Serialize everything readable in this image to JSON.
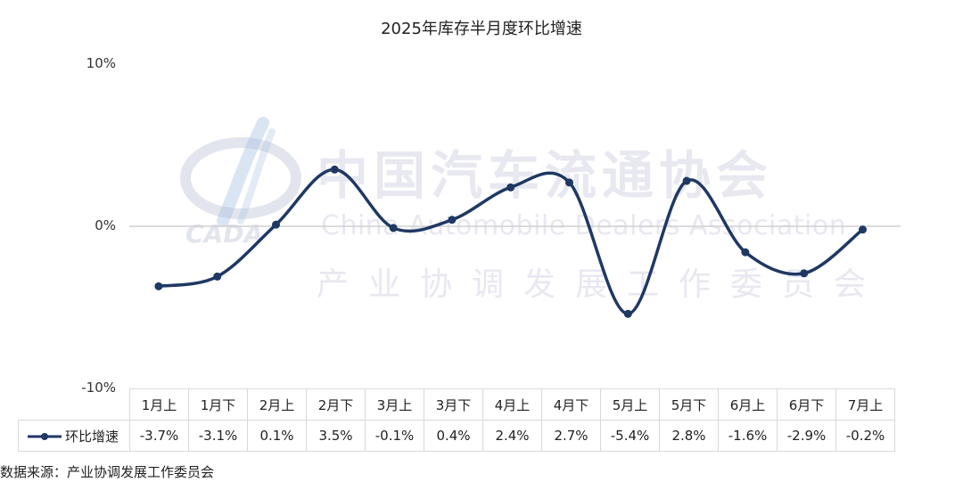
{
  "chart_data": {
    "type": "line",
    "title": "2025年库存半月度环比增速",
    "categories": [
      "1月上",
      "1月下",
      "2月上",
      "2月下",
      "3月上",
      "3月下",
      "4月上",
      "4月下",
      "5月上",
      "5月下",
      "6月上",
      "6月下",
      "7月上"
    ],
    "series": [
      {
        "name": "环比增速",
        "values": [
          -3.7,
          -3.1,
          0.1,
          3.5,
          -0.1,
          0.4,
          2.4,
          2.7,
          -5.4,
          2.8,
          -1.6,
          -2.9,
          -0.2
        ],
        "labels": [
          "-3.7%",
          "-3.1%",
          "0.1%",
          "3.5%",
          "-0.1%",
          "0.4%",
          "2.4%",
          "2.7%",
          "-5.4%",
          "2.8%",
          "-1.6%",
          "-2.9%",
          "-0.2%"
        ],
        "color": "#1f3864"
      }
    ],
    "ylim": [
      -10,
      10
    ],
    "y_ticks": [
      10,
      0,
      -10
    ],
    "y_tick_labels": [
      "10%",
      "0%",
      "-10%"
    ],
    "grid": "zero-line only",
    "legend": "data table"
  },
  "watermark": {
    "name_cn": "中国汽车流通协会",
    "name_en": "China Automobile Dealers Association",
    "subtitle": "产业协调发展工作委员会",
    "logo_text": "CADA"
  },
  "source": "数据来源：产业协调发展工作委员会"
}
